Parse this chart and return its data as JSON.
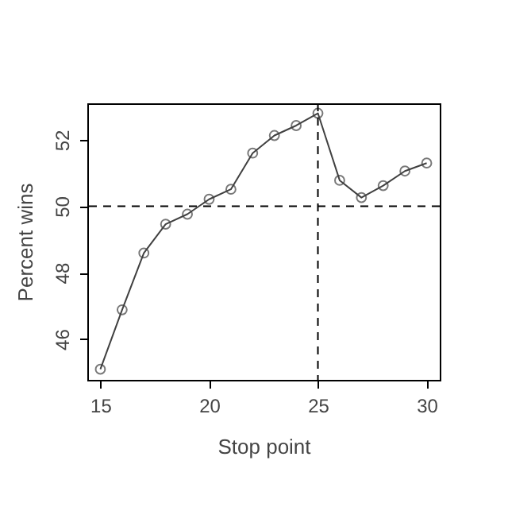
{
  "chart_data": {
    "type": "line",
    "xlabel": "Stop point",
    "ylabel": "Percent wins",
    "x": [
      15,
      16,
      17,
      18,
      19,
      20,
      21,
      22,
      23,
      24,
      25,
      26,
      27,
      28,
      29,
      30
    ],
    "series": [
      {
        "color": "#404040",
        "values": [
          45.09,
          46.88,
          48.59,
          49.46,
          49.76,
          50.21,
          50.51,
          51.6,
          52.13,
          52.43,
          52.8,
          50.78,
          50.26,
          50.62,
          51.06,
          51.3
        ]
      }
    ],
    "xlim": [
      14.4,
      30.6
    ],
    "ylim": [
      44.77,
      53.1
    ],
    "xticks": [
      15,
      20,
      25,
      30
    ],
    "yticks": [
      46,
      48,
      50,
      52
    ],
    "marker": "circle",
    "line_style": "solid",
    "grid": false,
    "ref_lines": [
      {
        "axis": "x",
        "value": 25,
        "line_style": "dashed",
        "color": "#000000"
      },
      {
        "axis": "y",
        "value": 50,
        "line_style": "dashed",
        "color": "#000000"
      }
    ]
  }
}
